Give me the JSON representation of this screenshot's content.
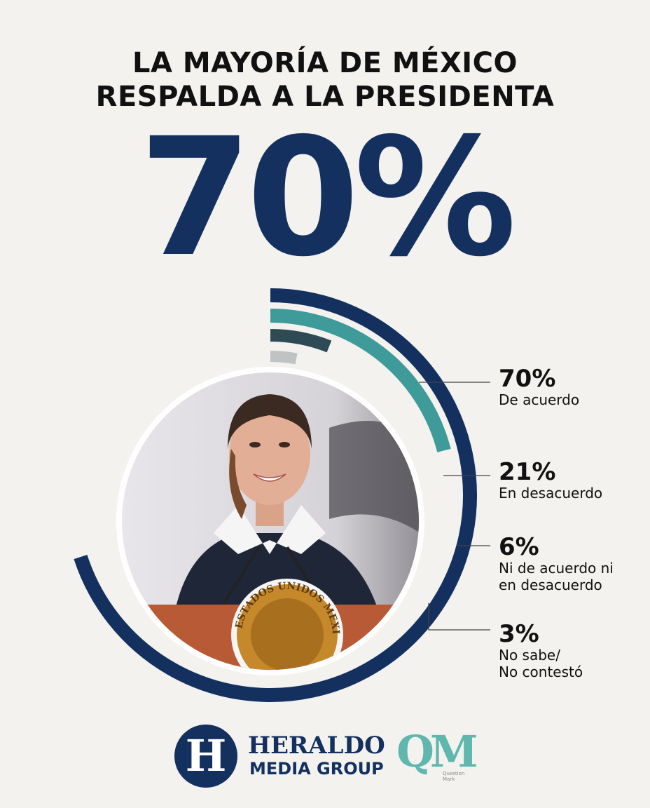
{
  "title": {
    "line1": "LA MAYORÍA DE MÉXICO",
    "line2": "RESPALDA A LA PRESIDENTA"
  },
  "headline_value": "70%",
  "chart_data": {
    "type": "radial-bar",
    "series": [
      {
        "percent_label": "70%",
        "category": "De acuerdo",
        "value": 70,
        "color": "#13305f"
      },
      {
        "percent_label": "21%",
        "category": "En desacuerdo",
        "value": 21,
        "color": "#3f9a9a"
      },
      {
        "percent_label": "6%",
        "category_line1": "Ni de acuerdo ni",
        "category_line2": "en desacuerdo",
        "value": 6,
        "color": "#2e4a55"
      },
      {
        "percent_label": "3%",
        "category_line1": "No sabe/",
        "category_line2": "No contestó",
        "value": 3,
        "color": "#bfc3c4"
      }
    ]
  },
  "photo": {
    "seal_text": "ESTADOS UNIDOS MEXICANOS"
  },
  "brand": {
    "logo_letter": "H",
    "name_line1": "HERALDO",
    "name_line2": "MEDIA GROUP",
    "partner_letters": "QM",
    "partner_sub": "Question Mark"
  },
  "colors": {
    "navy": "#13305f",
    "teal": "#3f9a9a",
    "slate": "#2e4a55",
    "grey": "#bfc3c4",
    "background": "#f3f2ee"
  }
}
